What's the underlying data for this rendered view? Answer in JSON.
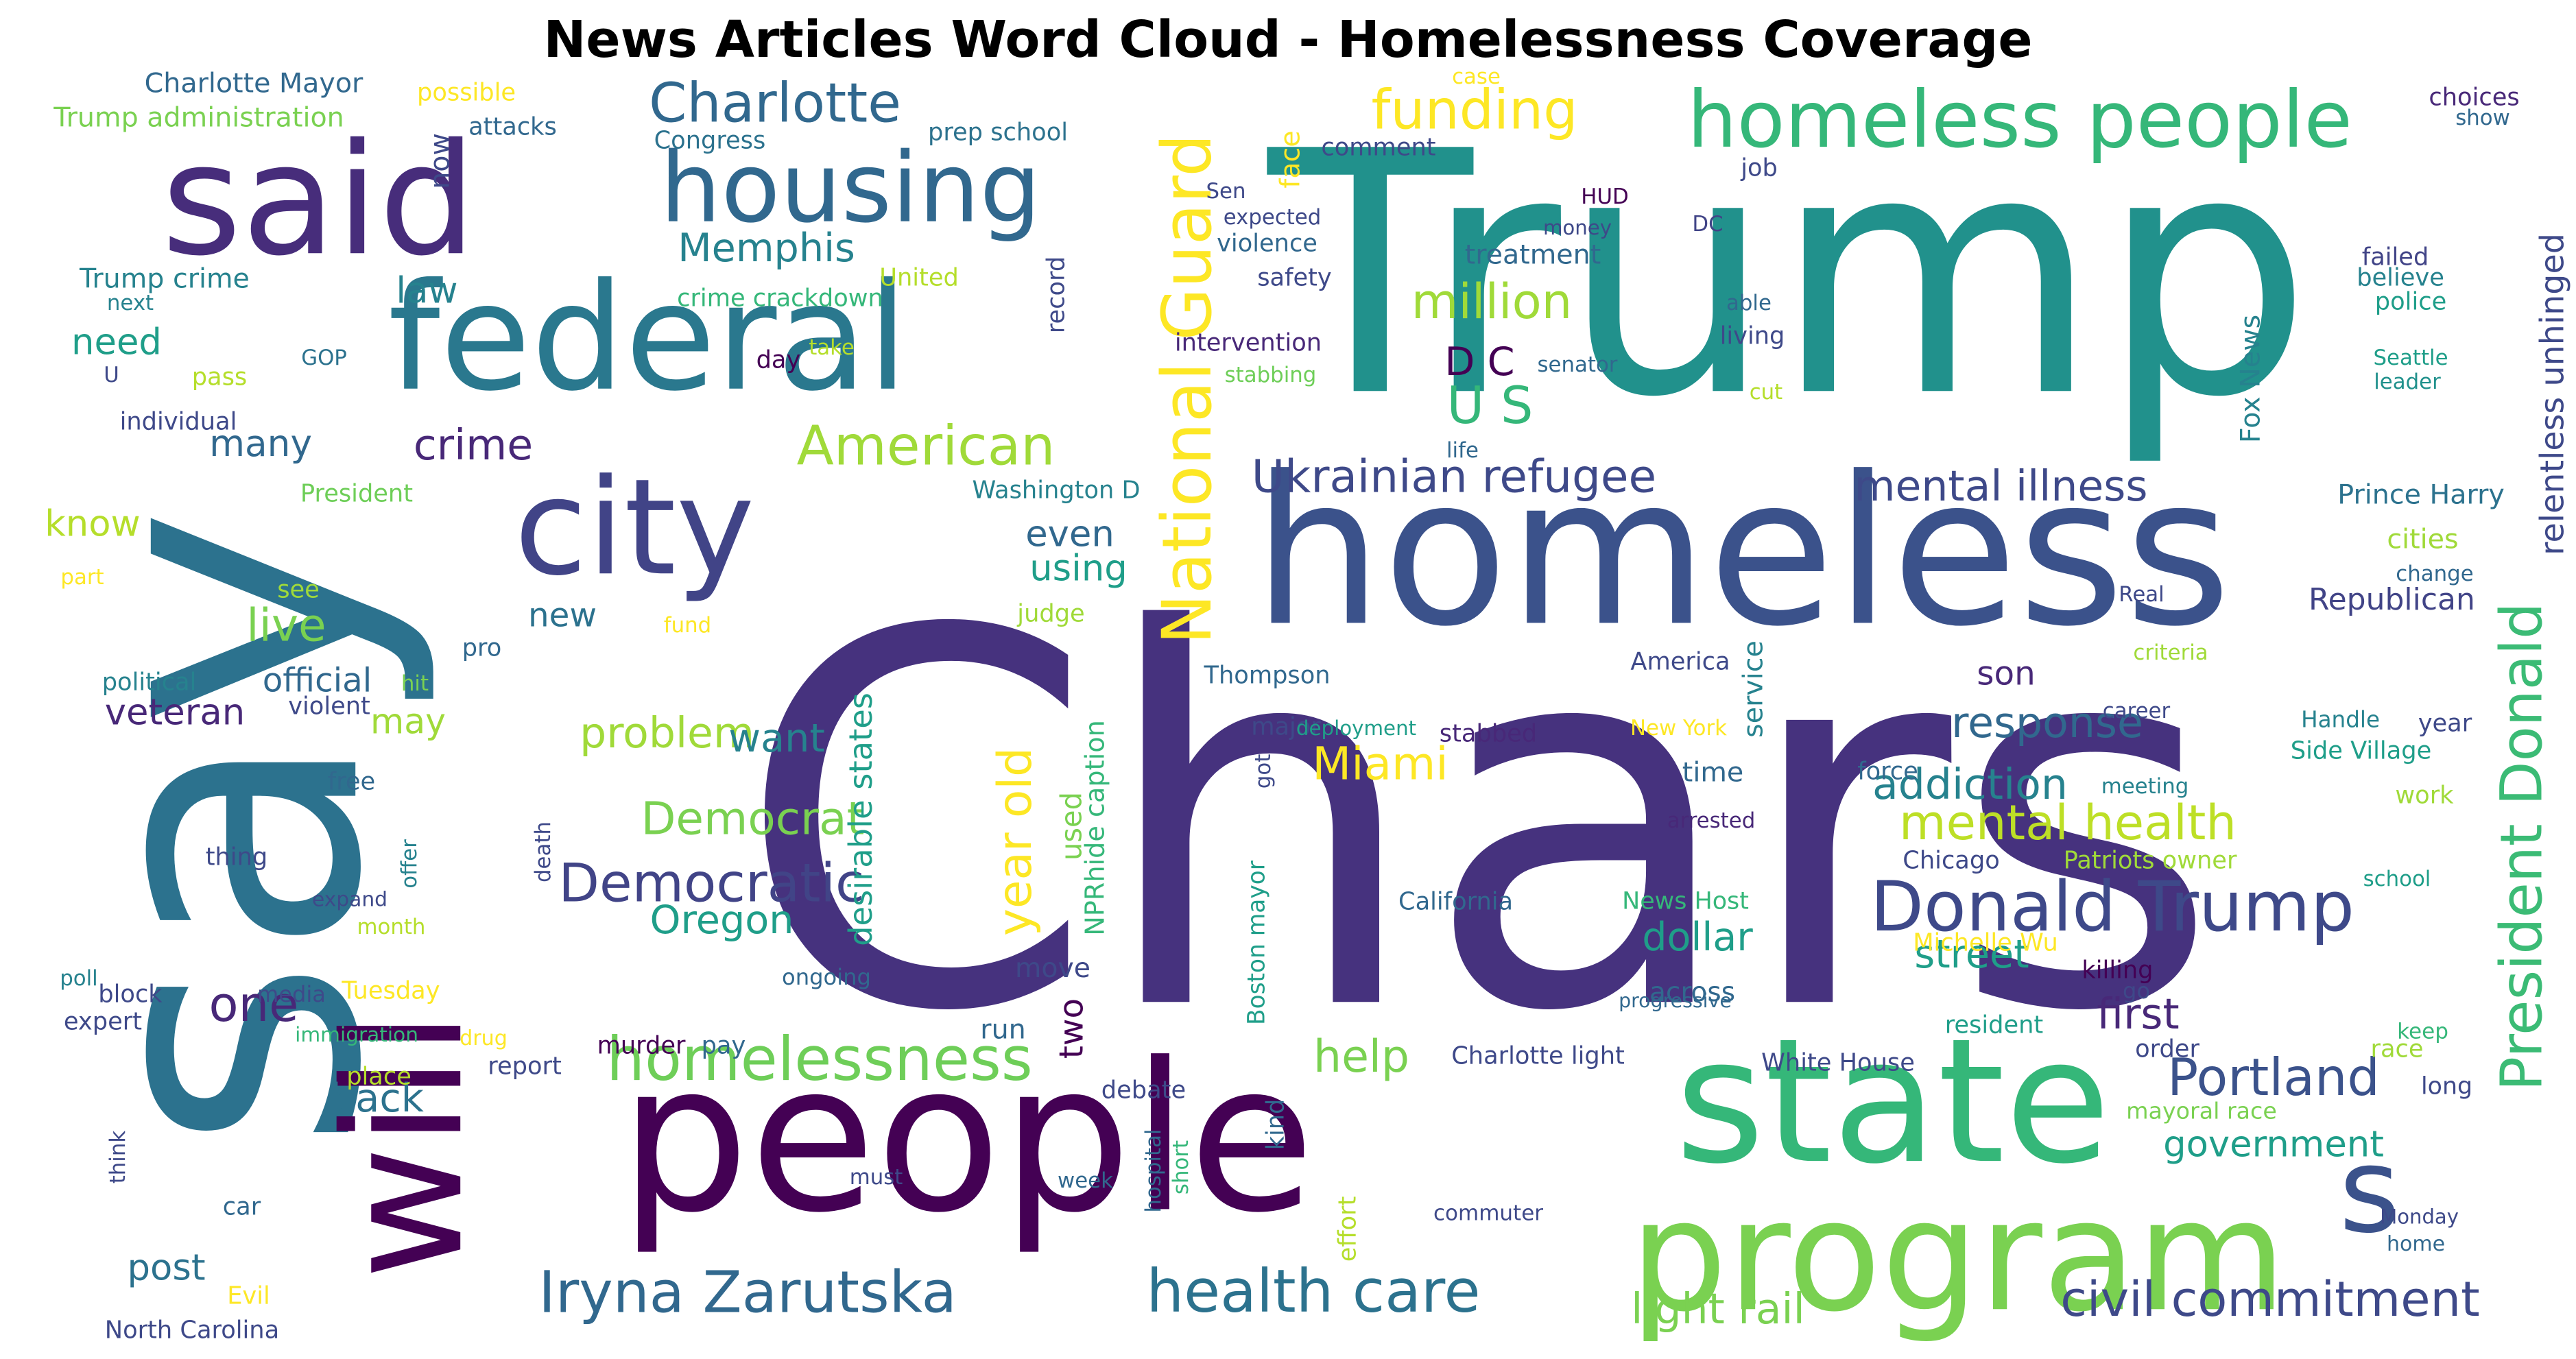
{
  "title": "News Articles Word Cloud - Homelessness Coverage",
  "colors": {
    "background": "#ffffff",
    "title": "#000000",
    "palette": [
      "#440154",
      "#482878",
      "#3e4989",
      "#31688e",
      "#26828e",
      "#1f9e89",
      "#35b779",
      "#6ece58",
      "#b5de2b",
      "#fde725"
    ]
  },
  "words": [
    {
      "text": "Chars",
      "color": "#46327e"
    },
    {
      "text": "Trump",
      "color": "#21918c"
    },
    {
      "text": "say",
      "color": "#2c728e"
    },
    {
      "text": "people",
      "color": "#440154"
    },
    {
      "text": "homeless",
      "color": "#3b528b"
    },
    {
      "text": "state",
      "color": "#35b779"
    },
    {
      "text": "program",
      "color": "#7ad151"
    },
    {
      "text": "said",
      "color": "#472d7b"
    },
    {
      "text": "federal",
      "color": "#2a788e"
    },
    {
      "text": "city",
      "color": "#414487"
    },
    {
      "text": "housing",
      "color": "#31688e"
    },
    {
      "text": "homeless people",
      "color": "#35b779"
    },
    {
      "text": "will",
      "color": "#440154"
    },
    {
      "text": "s",
      "color": "#3b528b"
    },
    {
      "text": "President Donald",
      "color": "#3bbb75"
    },
    {
      "text": "National Guard",
      "color": "#fde725"
    },
    {
      "text": "Donald Trump",
      "color": "#3e4989"
    },
    {
      "text": "Charlotte",
      "color": "#31688e"
    },
    {
      "text": "homelessness",
      "color": "#6ece58"
    },
    {
      "text": "American",
      "color": "#a0da39"
    },
    {
      "text": "Iryna Zarutska",
      "color": "#31688e"
    },
    {
      "text": "funding",
      "color": "#fde725"
    },
    {
      "text": "Ukrainian refugee",
      "color": "#3e4989"
    },
    {
      "text": "Democratic",
      "color": "#414487"
    },
    {
      "text": "health care",
      "color": "#2c728e"
    },
    {
      "text": "civil commitment",
      "color": "#3e4989"
    },
    {
      "text": "Portland",
      "color": "#3b528b"
    },
    {
      "text": "mental illness",
      "color": "#3e4989"
    },
    {
      "text": "Memphis",
      "color": "#26828e"
    },
    {
      "text": "million",
      "color": "#a0da39"
    },
    {
      "text": "mental health",
      "color": "#bddf26"
    },
    {
      "text": "Miami",
      "color": "#fde725"
    },
    {
      "text": "U S",
      "color": "#35b779"
    },
    {
      "text": "D C",
      "color": "#440154"
    },
    {
      "text": "crime",
      "color": "#482878"
    },
    {
      "text": "Democrat",
      "color": "#7ad151"
    },
    {
      "text": "year old",
      "color": "#fde725"
    },
    {
      "text": "response",
      "color": "#31688e"
    },
    {
      "text": "addiction",
      "color": "#26828e"
    },
    {
      "text": "street",
      "color": "#1f9e89"
    },
    {
      "text": "government",
      "color": "#1f9e89"
    },
    {
      "text": "light rail",
      "color": "#7ad151"
    },
    {
      "text": "first",
      "color": "#482878"
    },
    {
      "text": "problem",
      "color": "#a0da39"
    },
    {
      "text": "one",
      "color": "#482878"
    },
    {
      "text": "live",
      "color": "#7ad151"
    },
    {
      "text": "help",
      "color": "#7ad151"
    },
    {
      "text": "want",
      "color": "#26828e"
    },
    {
      "text": "Oregon",
      "color": "#1f9e89"
    },
    {
      "text": "dollar",
      "color": "#1f9e89"
    },
    {
      "text": "back",
      "color": "#2c728e"
    },
    {
      "text": "many",
      "color": "#31688e"
    },
    {
      "text": "even",
      "color": "#31688e"
    },
    {
      "text": "using",
      "color": "#1f9e89"
    },
    {
      "text": "new",
      "color": "#2c728e"
    },
    {
      "text": "veteran",
      "color": "#482878"
    },
    {
      "text": "post",
      "color": "#2c728e"
    },
    {
      "text": "law",
      "color": "#26828e"
    },
    {
      "text": "need",
      "color": "#1f9e89"
    },
    {
      "text": "know",
      "color": "#b5de2b"
    },
    {
      "text": "may",
      "color": "#a0da39"
    },
    {
      "text": "son",
      "color": "#482878"
    },
    {
      "text": "official",
      "color": "#31688e"
    },
    {
      "text": "Republican",
      "color": "#414487"
    },
    {
      "text": "Prince Harry",
      "color": "#2c728e"
    },
    {
      "text": "cities",
      "color": "#a0da39"
    },
    {
      "text": "time",
      "color": "#31688e"
    },
    {
      "text": "across",
      "color": "#31688e"
    },
    {
      "text": "two",
      "color": "#440154"
    },
    {
      "text": "used",
      "color": "#7ad151"
    },
    {
      "text": "run",
      "color": "#31688e"
    },
    {
      "text": "move",
      "color": "#3e4989"
    },
    {
      "text": "Charlotte Mayor",
      "color": "#31688e"
    },
    {
      "text": "Trump administration",
      "color": "#7ad151"
    },
    {
      "text": "possible",
      "color": "#fde725"
    },
    {
      "text": "attacks",
      "color": "#31688e"
    },
    {
      "text": "Congress",
      "color": "#2c728e"
    },
    {
      "text": "prep school",
      "color": "#2c728e"
    },
    {
      "text": "case",
      "color": "#fde725"
    },
    {
      "text": "choices",
      "color": "#482878"
    },
    {
      "text": "show",
      "color": "#31688e"
    },
    {
      "text": "face",
      "color": "#fde725"
    },
    {
      "text": "comment",
      "color": "#3e4989"
    },
    {
      "text": "now",
      "color": "#3e4989"
    },
    {
      "text": "Sen",
      "color": "#3e4989"
    },
    {
      "text": "expected",
      "color": "#3e4989"
    },
    {
      "text": "violence",
      "color": "#31688e"
    },
    {
      "text": "safety",
      "color": "#3e4989"
    },
    {
      "text": "HUD",
      "color": "#440154"
    },
    {
      "text": "money",
      "color": "#3e4989"
    },
    {
      "text": "DC",
      "color": "#414487"
    },
    {
      "text": "job",
      "color": "#3e4989"
    },
    {
      "text": "treatment",
      "color": "#31688e"
    },
    {
      "text": "Trump crime",
      "color": "#26828e"
    },
    {
      "text": "United",
      "color": "#b5de2b"
    },
    {
      "text": "crime crackdown",
      "color": "#35b779"
    },
    {
      "text": "next",
      "color": "#26828e"
    },
    {
      "text": "record",
      "color": "#3e4989"
    },
    {
      "text": "able",
      "color": "#31688e"
    },
    {
      "text": "living",
      "color": "#3e4989"
    },
    {
      "text": "failed",
      "color": "#414487"
    },
    {
      "text": "believe",
      "color": "#26828e"
    },
    {
      "text": "police",
      "color": "#1f9e89"
    },
    {
      "text": "relentless unhinged",
      "color": "#3e4989"
    },
    {
      "text": "Fox News",
      "color": "#26828e"
    },
    {
      "text": "Seattle",
      "color": "#1f9e89"
    },
    {
      "text": "leader",
      "color": "#21918c"
    },
    {
      "text": "cut",
      "color": "#b5de2b"
    },
    {
      "text": "senator",
      "color": "#31688e"
    },
    {
      "text": "intervention",
      "color": "#482878"
    },
    {
      "text": "stabbing",
      "color": "#6ece58"
    },
    {
      "text": "take",
      "color": "#b5de2b"
    },
    {
      "text": "day",
      "color": "#440154"
    },
    {
      "text": "GOP",
      "color": "#2c728e"
    },
    {
      "text": "pass",
      "color": "#b5de2b"
    },
    {
      "text": "U",
      "color": "#3e4989"
    },
    {
      "text": "individual",
      "color": "#3e4989"
    },
    {
      "text": "life",
      "color": "#31688e"
    },
    {
      "text": "President",
      "color": "#6ece58"
    },
    {
      "text": "Washington D",
      "color": "#26828e"
    },
    {
      "text": "part",
      "color": "#fde725"
    },
    {
      "text": "see",
      "color": "#a0da39"
    },
    {
      "text": "judge",
      "color": "#a0da39"
    },
    {
      "text": "fund",
      "color": "#fde725"
    },
    {
      "text": "pro",
      "color": "#31688e"
    },
    {
      "text": "Real",
      "color": "#3e4989"
    },
    {
      "text": "change",
      "color": "#31688e"
    },
    {
      "text": "political",
      "color": "#26828e"
    },
    {
      "text": "hit",
      "color": "#7ad151"
    },
    {
      "text": "violent",
      "color": "#3e4989"
    },
    {
      "text": "Thompson",
      "color": "#31688e"
    },
    {
      "text": "America",
      "color": "#3e4989"
    },
    {
      "text": "criteria",
      "color": "#a0da39"
    },
    {
      "text": "career",
      "color": "#3e4989"
    },
    {
      "text": "Handle",
      "color": "#26828e"
    },
    {
      "text": "year",
      "color": "#3e4989"
    },
    {
      "text": "Side Village",
      "color": "#1f9e89"
    },
    {
      "text": "major",
      "color": "#3e4989"
    },
    {
      "text": "deployment",
      "color": "#1f9e89"
    },
    {
      "text": "stabbed",
      "color": "#482878"
    },
    {
      "text": "New York",
      "color": "#fde725"
    },
    {
      "text": "service",
      "color": "#26828e"
    },
    {
      "text": "force",
      "color": "#31688e"
    },
    {
      "text": "meeting",
      "color": "#26828e"
    },
    {
      "text": "work",
      "color": "#a0da39"
    },
    {
      "text": "desirable states",
      "color": "#1f9e89"
    },
    {
      "text": "got",
      "color": "#3e4989"
    },
    {
      "text": "arrested",
      "color": "#482878"
    },
    {
      "text": "free",
      "color": "#31688e"
    },
    {
      "text": "thing",
      "color": "#3e4989"
    },
    {
      "text": "offer",
      "color": "#26828e"
    },
    {
      "text": "death",
      "color": "#3e4989"
    },
    {
      "text": "Chicago",
      "color": "#3e4989"
    },
    {
      "text": "Patriots owner",
      "color": "#a0da39"
    },
    {
      "text": "school",
      "color": "#1f9e89"
    },
    {
      "text": "NPRhide caption",
      "color": "#35b779"
    },
    {
      "text": "California",
      "color": "#31688e"
    },
    {
      "text": "News Host",
      "color": "#35b779"
    },
    {
      "text": "expand",
      "color": "#3e4989"
    },
    {
      "text": "month",
      "color": "#b5de2b"
    },
    {
      "text": "Boston mayor",
      "color": "#1f9e89"
    },
    {
      "text": "Michelle Wu",
      "color": "#fde725"
    },
    {
      "text": "poll",
      "color": "#26828e"
    },
    {
      "text": "block",
      "color": "#3e4989"
    },
    {
      "text": "media",
      "color": "#3e4989"
    },
    {
      "text": "Tuesday",
      "color": "#fde725"
    },
    {
      "text": "ongoing",
      "color": "#31688e"
    },
    {
      "text": "killing",
      "color": "#440154"
    },
    {
      "text": "go",
      "color": "#3e4989"
    },
    {
      "text": "progressive",
      "color": "#31688e"
    },
    {
      "text": "expert",
      "color": "#3e4989"
    },
    {
      "text": "immigration",
      "color": "#35b779"
    },
    {
      "text": "drug",
      "color": "#fde725"
    },
    {
      "text": "resident",
      "color": "#1f9e89"
    },
    {
      "text": "keep",
      "color": "#35b779"
    },
    {
      "text": "murder",
      "color": "#440154"
    },
    {
      "text": "pay",
      "color": "#31688e"
    },
    {
      "text": "order",
      "color": "#3e4989"
    },
    {
      "text": "race",
      "color": "#a0da39"
    },
    {
      "text": "report",
      "color": "#3e4989"
    },
    {
      "text": "place",
      "color": "#b5de2b"
    },
    {
      "text": "Charlotte light",
      "color": "#3e4989"
    },
    {
      "text": "White House",
      "color": "#3e4989"
    },
    {
      "text": "debate",
      "color": "#3e4989"
    },
    {
      "text": "long",
      "color": "#3e4989"
    },
    {
      "text": "kind",
      "color": "#31688e"
    },
    {
      "text": "mayoral race",
      "color": "#7ad151"
    },
    {
      "text": "think",
      "color": "#3e4989"
    },
    {
      "text": "hospital",
      "color": "#31688e"
    },
    {
      "text": "must",
      "color": "#3e4989"
    },
    {
      "text": "week",
      "color": "#31688e"
    },
    {
      "text": "short",
      "color": "#35b779"
    },
    {
      "text": "car",
      "color": "#31688e"
    },
    {
      "text": "effort",
      "color": "#b5de2b"
    },
    {
      "text": "commuter",
      "color": "#3e4989"
    },
    {
      "text": "Monday",
      "color": "#3e4989"
    },
    {
      "text": "home",
      "color": "#31688e"
    },
    {
      "text": "Evil",
      "color": "#fde725"
    },
    {
      "text": "North Carolina",
      "color": "#3e4989"
    }
  ]
}
